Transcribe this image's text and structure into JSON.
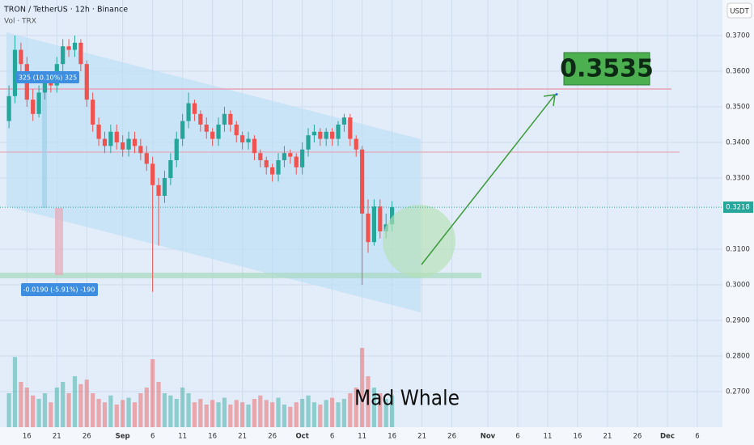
{
  "chart_data": {
    "type": "candlestick",
    "title": "TRON / TetherUS · 12h · Binance",
    "subtitle": "Vol · TRX",
    "currency": "USDT",
    "watermark": "Mad Whale",
    "up_color": "#26a69a",
    "down_color": "#ef5350",
    "x": [
      0,
      1,
      2,
      3,
      4,
      5,
      6,
      7,
      8,
      9,
      10,
      11,
      12,
      13,
      14,
      15,
      16,
      17,
      18,
      19,
      20,
      21,
      22,
      23,
      24,
      25,
      26,
      27,
      28,
      29,
      30,
      31,
      32,
      33,
      34,
      35,
      36,
      37,
      38,
      39,
      40,
      41,
      42,
      43,
      44,
      45,
      46,
      47,
      48,
      49,
      50,
      51,
      52,
      53,
      54,
      55,
      56,
      57,
      58,
      59,
      60,
      61,
      62,
      63,
      64
    ],
    "open": [
      0.346,
      0.353,
      0.366,
      0.362,
      0.352,
      0.348,
      0.354,
      0.358,
      0.356,
      0.362,
      0.367,
      0.366,
      0.368,
      0.362,
      0.352,
      0.345,
      0.341,
      0.339,
      0.343,
      0.34,
      0.338,
      0.341,
      0.339,
      0.337,
      0.334,
      0.328,
      0.325,
      0.33,
      0.335,
      0.341,
      0.346,
      0.351,
      0.348,
      0.345,
      0.343,
      0.341,
      0.345,
      0.348,
      0.345,
      0.342,
      0.34,
      0.341,
      0.337,
      0.335,
      0.333,
      0.331,
      0.335,
      0.337,
      0.336,
      0.333,
      0.338,
      0.342,
      0.343,
      0.341,
      0.343,
      0.341,
      0.345,
      0.347,
      0.341,
      0.338,
      0.32,
      0.312,
      0.322,
      0.315,
      0.317
    ],
    "high": [
      0.356,
      0.37,
      0.368,
      0.364,
      0.355,
      0.356,
      0.36,
      0.36,
      0.364,
      0.369,
      0.369,
      0.37,
      0.369,
      0.363,
      0.354,
      0.347,
      0.343,
      0.345,
      0.345,
      0.342,
      0.343,
      0.343,
      0.341,
      0.339,
      0.336,
      0.33,
      0.332,
      0.337,
      0.343,
      0.348,
      0.354,
      0.352,
      0.349,
      0.347,
      0.344,
      0.347,
      0.35,
      0.349,
      0.346,
      0.343,
      0.343,
      0.342,
      0.338,
      0.336,
      0.334,
      0.337,
      0.339,
      0.338,
      0.337,
      0.34,
      0.344,
      0.345,
      0.344,
      0.344,
      0.344,
      0.346,
      0.348,
      0.348,
      0.342,
      0.339,
      0.324,
      0.324,
      0.324,
      0.32,
      0.3235
    ],
    "low": [
      0.344,
      0.351,
      0.36,
      0.35,
      0.346,
      0.347,
      0.352,
      0.354,
      0.354,
      0.36,
      0.364,
      0.364,
      0.36,
      0.35,
      0.343,
      0.339,
      0.337,
      0.337,
      0.338,
      0.336,
      0.336,
      0.337,
      0.335,
      0.332,
      0.298,
      0.311,
      0.323,
      0.328,
      0.333,
      0.339,
      0.344,
      0.346,
      0.343,
      0.341,
      0.339,
      0.339,
      0.343,
      0.343,
      0.34,
      0.338,
      0.338,
      0.335,
      0.333,
      0.331,
      0.329,
      0.329,
      0.333,
      0.334,
      0.331,
      0.331,
      0.336,
      0.34,
      0.339,
      0.339,
      0.339,
      0.339,
      0.343,
      0.339,
      0.336,
      0.3,
      0.309,
      0.311,
      0.313,
      0.313,
      0.315
    ],
    "close": [
      0.353,
      0.366,
      0.362,
      0.352,
      0.348,
      0.354,
      0.358,
      0.356,
      0.362,
      0.367,
      0.366,
      0.368,
      0.362,
      0.352,
      0.345,
      0.341,
      0.339,
      0.343,
      0.34,
      0.338,
      0.341,
      0.339,
      0.337,
      0.334,
      0.328,
      0.325,
      0.33,
      0.335,
      0.341,
      0.346,
      0.351,
      0.348,
      0.345,
      0.343,
      0.341,
      0.345,
      0.348,
      0.345,
      0.342,
      0.34,
      0.341,
      0.337,
      0.335,
      0.333,
      0.331,
      0.335,
      0.337,
      0.336,
      0.333,
      0.338,
      0.342,
      0.343,
      0.341,
      0.343,
      0.341,
      0.345,
      0.347,
      0.341,
      0.338,
      0.32,
      0.312,
      0.322,
      0.315,
      0.317,
      0.3218
    ],
    "volume": [
      30,
      62,
      40,
      35,
      28,
      25,
      30,
      22,
      35,
      40,
      30,
      45,
      38,
      42,
      30,
      25,
      22,
      28,
      20,
      24,
      26,
      22,
      30,
      35,
      60,
      40,
      30,
      28,
      25,
      35,
      30,
      22,
      25,
      20,
      24,
      22,
      26,
      20,
      24,
      22,
      20,
      25,
      28,
      24,
      22,
      26,
      20,
      18,
      22,
      25,
      28,
      22,
      20,
      24,
      26,
      22,
      25,
      30,
      35,
      70,
      45,
      35,
      30,
      25,
      28
    ],
    "volume_lim": [
      0,
      100
    ],
    "xlim": [
      -1.5,
      119.2
    ],
    "xticks": [
      {
        "value": 3,
        "label": "16"
      },
      {
        "value": 8,
        "label": "21"
      },
      {
        "value": 13,
        "label": "26"
      },
      {
        "value": 19,
        "label": "Sep"
      },
      {
        "value": 24,
        "label": "6"
      },
      {
        "value": 29,
        "label": "11"
      },
      {
        "value": 34,
        "label": "16"
      },
      {
        "value": 39,
        "label": "21"
      },
      {
        "value": 44,
        "label": "26"
      },
      {
        "value": 49,
        "label": "Oct"
      },
      {
        "value": 54,
        "label": "6"
      },
      {
        "value": 59,
        "label": "11"
      },
      {
        "value": 64,
        "label": "16"
      },
      {
        "value": 69,
        "label": "21"
      },
      {
        "value": 74,
        "label": "26"
      },
      {
        "value": 80,
        "label": "Nov"
      },
      {
        "value": 85,
        "label": "6"
      },
      {
        "value": 90,
        "label": "11"
      },
      {
        "value": 95,
        "label": "16"
      },
      {
        "value": 100,
        "label": "21"
      },
      {
        "value": 105,
        "label": "26"
      },
      {
        "value": 110,
        "label": "Dec"
      },
      {
        "value": 115,
        "label": "6"
      }
    ],
    "ylim": [
      0.26,
      0.38
    ],
    "yticks": [
      {
        "value": 0.37,
        "label": "0.3700"
      },
      {
        "value": 0.36,
        "label": "0.3600"
      },
      {
        "value": 0.35,
        "label": "0.3500"
      },
      {
        "value": 0.34,
        "label": "0.3400"
      },
      {
        "value": 0.33,
        "label": "0.3300"
      },
      {
        "value": 0.31,
        "label": "0.3100"
      },
      {
        "value": 0.3,
        "label": "0.3000"
      },
      {
        "value": 0.29,
        "label": "0.2900"
      },
      {
        "value": 0.28,
        "label": "0.2800"
      },
      {
        "value": 0.27,
        "label": "0.2700"
      }
    ],
    "last_price": {
      "value": 0.3218,
      "label": "0.3218"
    },
    "target": {
      "value": 0.3535,
      "label": "0.3535"
    },
    "measures": [
      "325 (10.10%) 325",
      "-0.0190 (-5.91%) -190"
    ]
  }
}
